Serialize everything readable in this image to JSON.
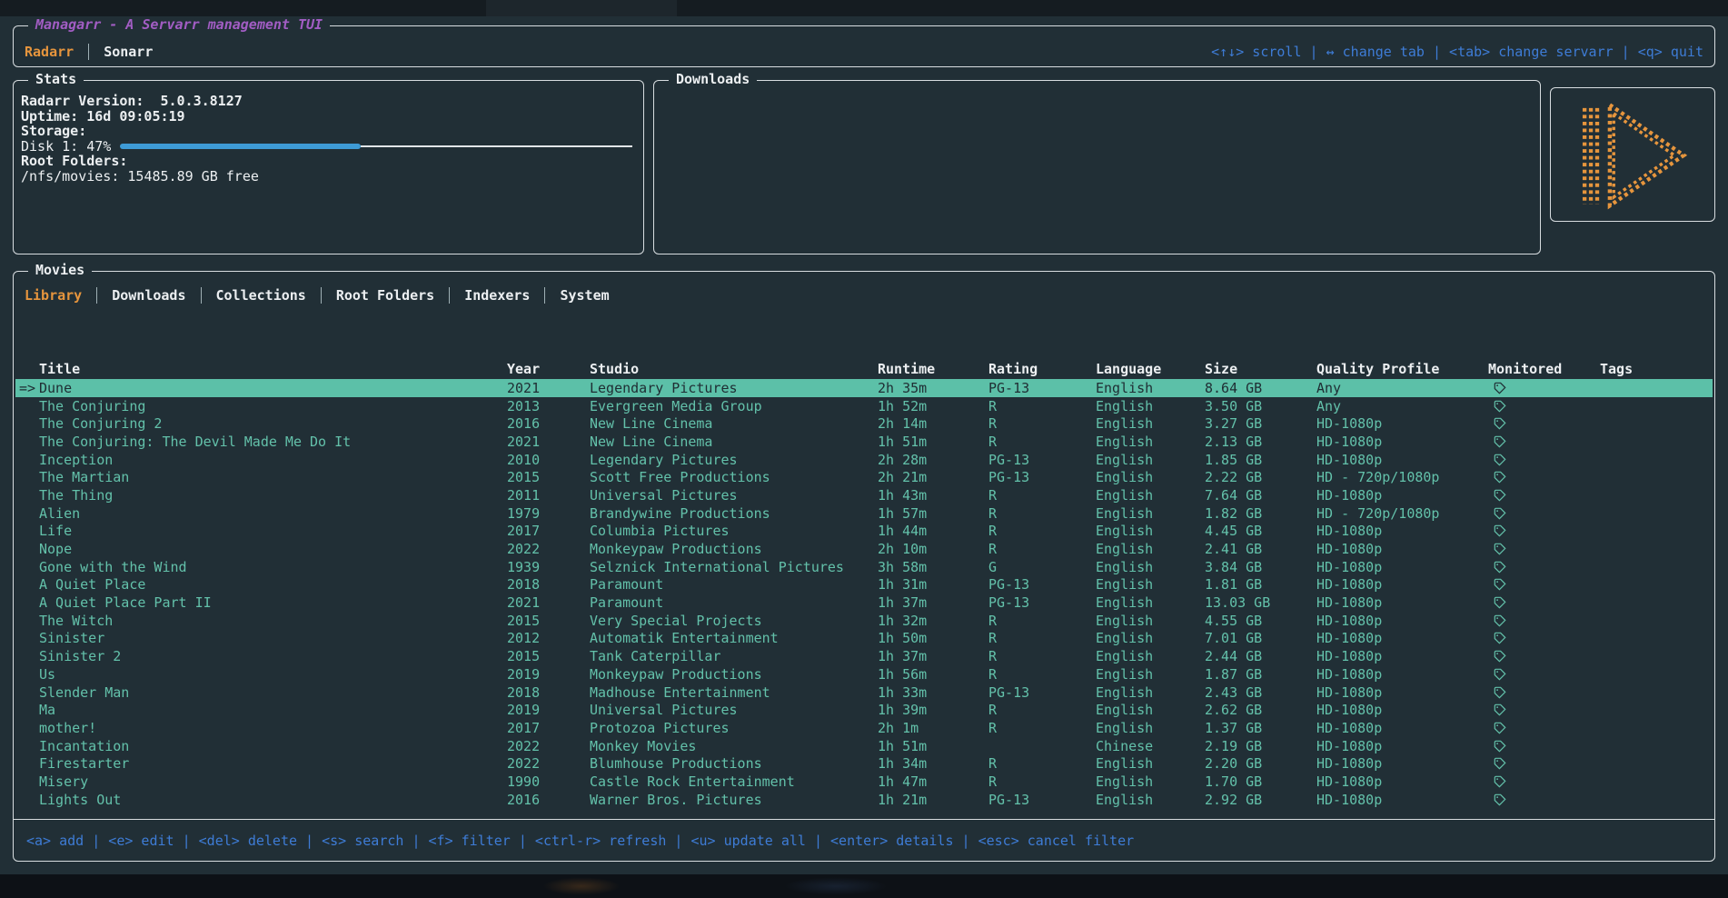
{
  "app": {
    "title": "Managarr - A Servarr management TUI"
  },
  "header": {
    "servarr_tabs": [
      {
        "label": "Radarr",
        "active": true
      },
      {
        "label": "Sonarr",
        "active": false
      }
    ],
    "hints": "<↑↓> scroll | ↔ change tab | <tab> change servarr | <q> quit"
  },
  "stats": {
    "panel_title": "Stats",
    "version_label": "Radarr Version:",
    "version_value": "5.0.3.8127",
    "uptime_label": "Uptime:",
    "uptime_value": "16d 09:05:19",
    "storage_label": "Storage:",
    "disk_label": "Disk 1: 47%",
    "disk_percent": 47,
    "root_folders_label": "Root Folders:",
    "root_folder_value": "/nfs/movies: 15485.89 GB free"
  },
  "downloads": {
    "panel_title": "Downloads"
  },
  "logo": {
    "name": "managarr-play-logo",
    "color": "#e6953d"
  },
  "movies": {
    "panel_title": "Movies",
    "tabs": [
      {
        "label": "Library",
        "active": true
      },
      {
        "label": "Downloads",
        "active": false
      },
      {
        "label": "Collections",
        "active": false
      },
      {
        "label": "Root Folders",
        "active": false
      },
      {
        "label": "Indexers",
        "active": false
      },
      {
        "label": "System",
        "active": false
      }
    ],
    "columns": [
      "Title",
      "Year",
      "Studio",
      "Runtime",
      "Rating",
      "Language",
      "Size",
      "Quality Profile",
      "Monitored",
      "Tags"
    ],
    "selected_marker": "=>",
    "rows": [
      {
        "marker": "=>",
        "selected": true,
        "title": "Dune",
        "year": "2021",
        "studio": "Legendary Pictures",
        "runtime": "2h 35m",
        "rating": "PG-13",
        "language": "English",
        "size": "8.64 GB",
        "quality_profile": "Any",
        "monitored": true,
        "tags": ""
      },
      {
        "marker": "",
        "selected": false,
        "title": "The Conjuring",
        "year": "2013",
        "studio": "Evergreen Media Group",
        "runtime": "1h 52m",
        "rating": "R",
        "language": "English",
        "size": "3.50 GB",
        "quality_profile": "Any",
        "monitored": true,
        "tags": ""
      },
      {
        "marker": "",
        "selected": false,
        "title": "The Conjuring 2",
        "year": "2016",
        "studio": "New Line Cinema",
        "runtime": "2h 14m",
        "rating": "R",
        "language": "English",
        "size": "3.27 GB",
        "quality_profile": "HD-1080p",
        "monitored": true,
        "tags": ""
      },
      {
        "marker": "",
        "selected": false,
        "title": "The Conjuring: The Devil Made Me Do It",
        "year": "2021",
        "studio": "New Line Cinema",
        "runtime": "1h 51m",
        "rating": "R",
        "language": "English",
        "size": "2.13 GB",
        "quality_profile": "HD-1080p",
        "monitored": true,
        "tags": ""
      },
      {
        "marker": "",
        "selected": false,
        "title": "Inception",
        "year": "2010",
        "studio": "Legendary Pictures",
        "runtime": "2h 28m",
        "rating": "PG-13",
        "language": "English",
        "size": "1.85 GB",
        "quality_profile": "HD-1080p",
        "monitored": true,
        "tags": ""
      },
      {
        "marker": "",
        "selected": false,
        "title": "The Martian",
        "year": "2015",
        "studio": "Scott Free Productions",
        "runtime": "2h 21m",
        "rating": "PG-13",
        "language": "English",
        "size": "2.22 GB",
        "quality_profile": "HD - 720p/1080p",
        "monitored": true,
        "tags": ""
      },
      {
        "marker": "",
        "selected": false,
        "title": "The Thing",
        "year": "2011",
        "studio": "Universal Pictures",
        "runtime": "1h 43m",
        "rating": "R",
        "language": "English",
        "size": "7.64 GB",
        "quality_profile": "HD-1080p",
        "monitored": true,
        "tags": ""
      },
      {
        "marker": "",
        "selected": false,
        "title": "Alien",
        "year": "1979",
        "studio": "Brandywine Productions",
        "runtime": "1h 57m",
        "rating": "R",
        "language": "English",
        "size": "1.82 GB",
        "quality_profile": "HD - 720p/1080p",
        "monitored": true,
        "tags": ""
      },
      {
        "marker": "",
        "selected": false,
        "title": "Life",
        "year": "2017",
        "studio": "Columbia Pictures",
        "runtime": "1h 44m",
        "rating": "R",
        "language": "English",
        "size": "4.45 GB",
        "quality_profile": "HD-1080p",
        "monitored": true,
        "tags": ""
      },
      {
        "marker": "",
        "selected": false,
        "title": "Nope",
        "year": "2022",
        "studio": "Monkeypaw Productions",
        "runtime": "2h 10m",
        "rating": "R",
        "language": "English",
        "size": "2.41 GB",
        "quality_profile": "HD-1080p",
        "monitored": true,
        "tags": ""
      },
      {
        "marker": "",
        "selected": false,
        "title": "Gone with the Wind",
        "year": "1939",
        "studio": "Selznick International Pictures",
        "runtime": "3h 58m",
        "rating": "G",
        "language": "English",
        "size": "3.84 GB",
        "quality_profile": "HD-1080p",
        "monitored": true,
        "tags": ""
      },
      {
        "marker": "",
        "selected": false,
        "title": "A Quiet Place",
        "year": "2018",
        "studio": "Paramount",
        "runtime": "1h 31m",
        "rating": "PG-13",
        "language": "English",
        "size": "1.81 GB",
        "quality_profile": "HD-1080p",
        "monitored": true,
        "tags": ""
      },
      {
        "marker": "",
        "selected": false,
        "title": "A Quiet Place Part II",
        "year": "2021",
        "studio": "Paramount",
        "runtime": "1h 37m",
        "rating": "PG-13",
        "language": "English",
        "size": "13.03 GB",
        "quality_profile": "HD-1080p",
        "monitored": true,
        "tags": ""
      },
      {
        "marker": "",
        "selected": false,
        "title": "The Witch",
        "year": "2015",
        "studio": "Very Special Projects",
        "runtime": "1h 32m",
        "rating": "R",
        "language": "English",
        "size": "4.55 GB",
        "quality_profile": "HD-1080p",
        "monitored": true,
        "tags": ""
      },
      {
        "marker": "",
        "selected": false,
        "title": "Sinister",
        "year": "2012",
        "studio": "Automatik Entertainment",
        "runtime": "1h 50m",
        "rating": "R",
        "language": "English",
        "size": "7.01 GB",
        "quality_profile": "HD-1080p",
        "monitored": true,
        "tags": ""
      },
      {
        "marker": "",
        "selected": false,
        "title": "Sinister 2",
        "year": "2015",
        "studio": "Tank Caterpillar",
        "runtime": "1h 37m",
        "rating": "R",
        "language": "English",
        "size": "2.44 GB",
        "quality_profile": "HD-1080p",
        "monitored": true,
        "tags": ""
      },
      {
        "marker": "",
        "selected": false,
        "title": "Us",
        "year": "2019",
        "studio": "Monkeypaw Productions",
        "runtime": "1h 56m",
        "rating": "R",
        "language": "English",
        "size": "1.87 GB",
        "quality_profile": "HD-1080p",
        "monitored": true,
        "tags": ""
      },
      {
        "marker": "",
        "selected": false,
        "title": "Slender Man",
        "year": "2018",
        "studio": "Madhouse Entertainment",
        "runtime": "1h 33m",
        "rating": "PG-13",
        "language": "English",
        "size": "2.43 GB",
        "quality_profile": "HD-1080p",
        "monitored": true,
        "tags": ""
      },
      {
        "marker": "",
        "selected": false,
        "title": "Ma",
        "year": "2019",
        "studio": "Universal Pictures",
        "runtime": "1h 39m",
        "rating": "R",
        "language": "English",
        "size": "2.62 GB",
        "quality_profile": "HD-1080p",
        "monitored": true,
        "tags": ""
      },
      {
        "marker": "",
        "selected": false,
        "title": "mother!",
        "year": "2017",
        "studio": "Protozoa Pictures",
        "runtime": "2h 1m",
        "rating": "R",
        "language": "English",
        "size": "1.37 GB",
        "quality_profile": "HD-1080p",
        "monitored": true,
        "tags": ""
      },
      {
        "marker": "",
        "selected": false,
        "title": "Incantation",
        "year": "2022",
        "studio": "Monkey Movies",
        "runtime": "1h 51m",
        "rating": "",
        "language": "Chinese",
        "size": "2.19 GB",
        "quality_profile": "HD-1080p",
        "monitored": true,
        "tags": ""
      },
      {
        "marker": "",
        "selected": false,
        "title": "Firestarter",
        "year": "2022",
        "studio": "Blumhouse Productions",
        "runtime": "1h 34m",
        "rating": "R",
        "language": "English",
        "size": "2.20 GB",
        "quality_profile": "HD-1080p",
        "monitored": true,
        "tags": ""
      },
      {
        "marker": "",
        "selected": false,
        "title": "Misery",
        "year": "1990",
        "studio": "Castle Rock Entertainment",
        "runtime": "1h 47m",
        "rating": "R",
        "language": "English",
        "size": "1.70 GB",
        "quality_profile": "HD-1080p",
        "monitored": true,
        "tags": ""
      },
      {
        "marker": "",
        "selected": false,
        "title": "Lights Out",
        "year": "2016",
        "studio": "Warner Bros. Pictures",
        "runtime": "1h 21m",
        "rating": "PG-13",
        "language": "English",
        "size": "2.92 GB",
        "quality_profile": "HD-1080p",
        "monitored": true,
        "tags": ""
      }
    ],
    "hints": "<a> add | <e> edit | <del> delete | <s> search | <f> filter | <ctrl-r> refresh | <u> update all | <enter> details | <esc> cancel filter"
  },
  "colors": {
    "accent_orange": "#e6953d",
    "accent_purple": "#a25dc4",
    "accent_blue": "#3e7cd6",
    "row_teal": "#63c1aa",
    "selected_row_bg": "#5cc0a8",
    "progress_blue": "#3e9bd6"
  }
}
